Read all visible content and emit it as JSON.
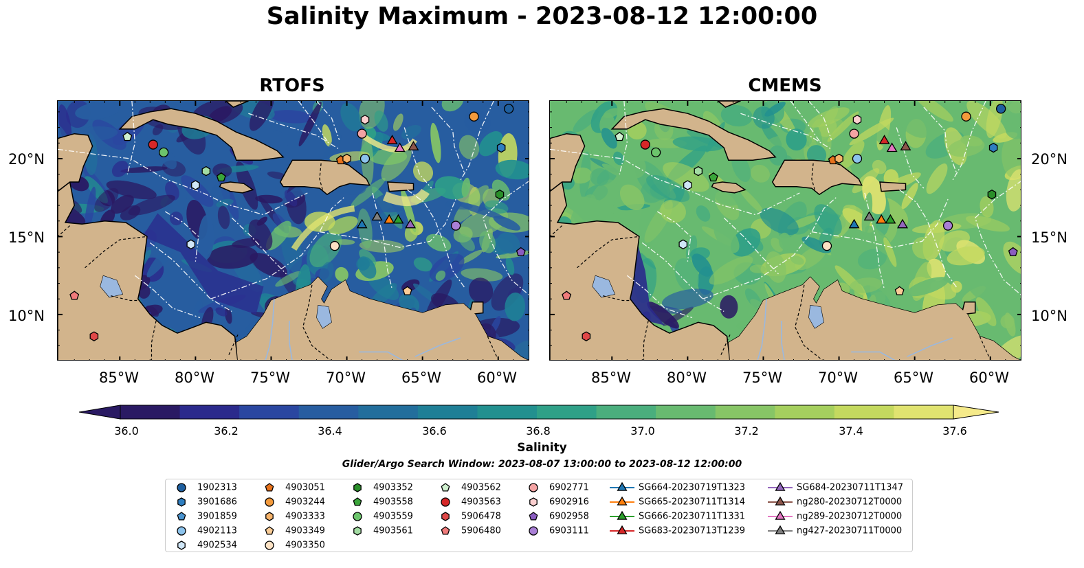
{
  "title": "Salinity Maximum - 2023-08-12 12:00:00",
  "panels": [
    {
      "name": "RTOFS"
    },
    {
      "name": "CMEMS"
    }
  ],
  "lat_ticks": [
    "20°N",
    "15°N",
    "10°N"
  ],
  "lon_ticks": [
    "85°W",
    "80°W",
    "75°W",
    "70°W",
    "65°W",
    "60°W"
  ],
  "colorbar": {
    "label": "Salinity",
    "ticks": [
      "36.0",
      "36.2",
      "36.4",
      "36.6",
      "36.8",
      "37.0",
      "37.2",
      "37.4",
      "37.6"
    ],
    "min": 36.0,
    "max": 37.6,
    "colors": [
      "#2a1a63",
      "#2b2a8c",
      "#2a46a0",
      "#275da0",
      "#226e9c",
      "#1f7f96",
      "#22908f",
      "#2fa087",
      "#4aae7d",
      "#68ba70",
      "#87c566",
      "#a5cf5e",
      "#c4d95f",
      "#e0e370",
      "#f5ea8a"
    ]
  },
  "search_window": "Glider/Argo Search Window: 2023-08-07 13:00:00 to 2023-08-12 12:00:00",
  "legend": [
    {
      "label": "1902313",
      "shape": "circle",
      "color": "#1f5f9f"
    },
    {
      "label": "3901686",
      "shape": "hexagon",
      "color": "#2e7ec0"
    },
    {
      "label": "3901859",
      "shape": "pentagon",
      "color": "#4a93cf"
    },
    {
      "label": "4902113",
      "shape": "circle",
      "color": "#8cc3ec"
    },
    {
      "label": "4902534",
      "shape": "hexagon",
      "color": "#cfe6f7"
    },
    {
      "label": "4903051",
      "shape": "pentagon",
      "color": "#e8731c"
    },
    {
      "label": "4903244",
      "shape": "circle",
      "color": "#f39a3c"
    },
    {
      "label": "4903333",
      "shape": "hexagon",
      "color": "#f6b36a"
    },
    {
      "label": "4903349",
      "shape": "pentagon",
      "color": "#f9cc97"
    },
    {
      "label": "4903350",
      "shape": "circle",
      "color": "#fde2c4"
    },
    {
      "label": "4903352",
      "shape": "hexagon",
      "color": "#2a8f2a"
    },
    {
      "label": "4903558",
      "shape": "pentagon",
      "color": "#3aa53a"
    },
    {
      "label": "4903559",
      "shape": "circle",
      "color": "#6cc46c"
    },
    {
      "label": "4903561",
      "shape": "hexagon",
      "color": "#a3dca3"
    },
    {
      "label": "4903562",
      "shape": "pentagon",
      "color": "#cff0cf"
    },
    {
      "label": "4903563",
      "shape": "circle",
      "color": "#d62728"
    },
    {
      "label": "5906478",
      "shape": "hexagon",
      "color": "#e04848"
    },
    {
      "label": "5906480",
      "shape": "pentagon",
      "color": "#f07b7b"
    },
    {
      "label": "6902771",
      "shape": "circle",
      "color": "#f4a3a3"
    },
    {
      "label": "6902916",
      "shape": "hexagon",
      "color": "#fbcfcf"
    },
    {
      "label": "6902958",
      "shape": "pentagon",
      "color": "#8a5cc0"
    },
    {
      "label": "6903111",
      "shape": "circle",
      "color": "#a97fd6"
    },
    {
      "label": "SG664-20230719T1323",
      "shape": "triangle",
      "color": "#1f77b4"
    },
    {
      "label": "SG665-20230711T1314",
      "shape": "triangle",
      "color": "#ff7f0e"
    },
    {
      "label": "SG666-20230711T1331",
      "shape": "triangle",
      "color": "#2ca02c"
    },
    {
      "label": "SG683-20230713T1239",
      "shape": "triangle",
      "color": "#d62728"
    },
    {
      "label": "SG684-20230711T1347",
      "shape": "triangle",
      "color": "#9467bd"
    },
    {
      "label": "ng280-20230712T0000",
      "shape": "triangle",
      "color": "#8c564b"
    },
    {
      "label": "ng289-20230712T0000",
      "shape": "triangle",
      "color": "#e377c2"
    },
    {
      "label": "ng427-20230711T0000",
      "shape": "triangle",
      "color": "#7f7f7f"
    }
  ],
  "observations": [
    {
      "id": "1902313",
      "lon": -59.3,
      "lat": 23.2
    },
    {
      "id": "3901686",
      "lon": -59.8,
      "lat": 20.7
    },
    {
      "id": "4903244",
      "lon": -61.6,
      "lat": 22.7
    },
    {
      "id": "6902916",
      "lon": -68.8,
      "lat": 22.5
    },
    {
      "id": "6902771",
      "lon": -69.0,
      "lat": 21.6
    },
    {
      "id": "4903051",
      "lon": -70.4,
      "lat": 19.9
    },
    {
      "id": "4903333",
      "lon": -70.0,
      "lat": 20.0
    },
    {
      "id": "4902113",
      "lon": -68.8,
      "lat": 20.0
    },
    {
      "id": "4903562",
      "lon": -84.5,
      "lat": 21.4
    },
    {
      "id": "4903563",
      "lon": -82.8,
      "lat": 20.9
    },
    {
      "id": "4903559",
      "lon": -82.1,
      "lat": 20.4
    },
    {
      "id": "4903561",
      "lon": -79.3,
      "lat": 19.2
    },
    {
      "id": "4903558",
      "lon": -78.3,
      "lat": 18.8
    },
    {
      "id": "4902534",
      "lon": -80.0,
      "lat": 18.3
    },
    {
      "id": "4903352",
      "lon": -59.9,
      "lat": 17.7
    },
    {
      "id": "6903111",
      "lon": -62.8,
      "lat": 15.7
    },
    {
      "id": "4903350",
      "lon": -70.8,
      "lat": 14.4
    },
    {
      "id": "4902534",
      "lon": -80.3,
      "lat": 14.5
    },
    {
      "id": "6902958",
      "lon": -58.5,
      "lat": 14.0
    },
    {
      "id": "4903349",
      "lon": -66.0,
      "lat": 11.5
    },
    {
      "id": "5906480",
      "lon": -88.0,
      "lat": 11.2
    },
    {
      "id": "5906478",
      "lon": -86.7,
      "lat": 8.6
    }
  ],
  "gliders": [
    {
      "id": "SG683-20230713T1239",
      "lon": -67.0,
      "lat": 21.2
    },
    {
      "id": "ng289-20230712T0000",
      "lon": -66.5,
      "lat": 20.7
    },
    {
      "id": "ng280-20230712T0000",
      "lon": -65.6,
      "lat": 20.8
    },
    {
      "id": "SG664-20230719T1323",
      "lon": -69.0,
      "lat": 15.8
    },
    {
      "id": "ng427-20230711T0000",
      "lon": -68.0,
      "lat": 16.3
    },
    {
      "id": "SG665-20230711T1314",
      "lon": -67.2,
      "lat": 16.1
    },
    {
      "id": "SG666-20230711T1331",
      "lon": -66.6,
      "lat": 16.1
    },
    {
      "id": "SG684-20230711T1347",
      "lon": -65.8,
      "lat": 15.8
    }
  ]
}
